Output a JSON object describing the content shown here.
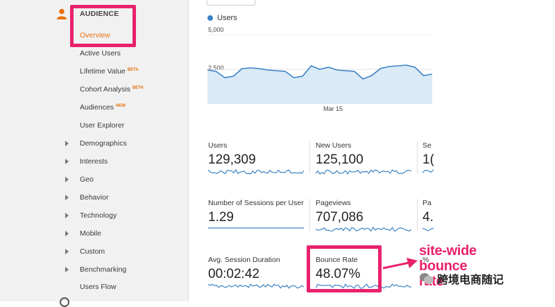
{
  "sidebar": {
    "section_title": "AUDIENCE",
    "items": [
      {
        "label": "Overview",
        "badge": "",
        "active": true,
        "expandable": false
      },
      {
        "label": "Active Users",
        "badge": "",
        "active": false,
        "expandable": false
      },
      {
        "label": "Lifetime Value",
        "badge": "BETA",
        "active": false,
        "expandable": false
      },
      {
        "label": "Cohort Analysis",
        "badge": "BETA",
        "active": false,
        "expandable": false
      },
      {
        "label": "Audiences",
        "badge": "NEW",
        "active": false,
        "expandable": false
      },
      {
        "label": "User Explorer",
        "badge": "",
        "active": false,
        "expandable": false
      },
      {
        "label": "Demographics",
        "badge": "",
        "active": false,
        "expandable": true
      },
      {
        "label": "Interests",
        "badge": "",
        "active": false,
        "expandable": true
      },
      {
        "label": "Geo",
        "badge": "",
        "active": false,
        "expandable": true
      },
      {
        "label": "Behavior",
        "badge": "",
        "active": false,
        "expandable": true
      },
      {
        "label": "Technology",
        "badge": "",
        "active": false,
        "expandable": true
      },
      {
        "label": "Mobile",
        "badge": "",
        "active": false,
        "expandable": true
      },
      {
        "label": "Custom",
        "badge": "",
        "active": false,
        "expandable": true
      },
      {
        "label": "Benchmarking",
        "badge": "",
        "active": false,
        "expandable": true
      },
      {
        "label": "Users Flow",
        "badge": "",
        "active": false,
        "expandable": false
      }
    ]
  },
  "chart_data": {
    "type": "area",
    "series": [
      {
        "name": "Users",
        "values": [
          2450,
          2350,
          1900,
          2000,
          2550,
          2600,
          2550,
          2450,
          2400,
          2350,
          1900,
          2000,
          2750,
          2500,
          2650,
          2450,
          2400,
          2350,
          1800,
          2050,
          2550,
          2700,
          2750,
          2800,
          2650,
          2050,
          2150
        ]
      }
    ],
    "x_ticks": [
      "Mar 15"
    ],
    "y_ticks": [
      "5,000",
      "2,500"
    ],
    "ylim": [
      0,
      5000
    ],
    "color": "#3b82c4",
    "fill": "#daeaf6"
  },
  "metrics": [
    {
      "label": "Users",
      "value": "129,309"
    },
    {
      "label": "New Users",
      "value": "125,100"
    },
    {
      "label": "Se",
      "value": "1("
    },
    {
      "label": "Number of Sessions per User",
      "value": "1.29"
    },
    {
      "label": "Pageviews",
      "value": "707,086"
    },
    {
      "label": "Pa",
      "value": "4."
    },
    {
      "label": "Avg. Session Duration",
      "value": "00:02:42"
    },
    {
      "label": "Bounce Rate",
      "value": "48.07%"
    },
    {
      "label": "%",
      "value": ""
    }
  ],
  "annotation": {
    "lines": [
      "site-wide",
      "bounce",
      "rate"
    ],
    "color": "#e8226d"
  },
  "watermark": {
    "text": "跨境电商随记"
  },
  "colors": {
    "accent": "#e8710a",
    "highlight": "#e8226d",
    "line": "#3b82c4"
  }
}
